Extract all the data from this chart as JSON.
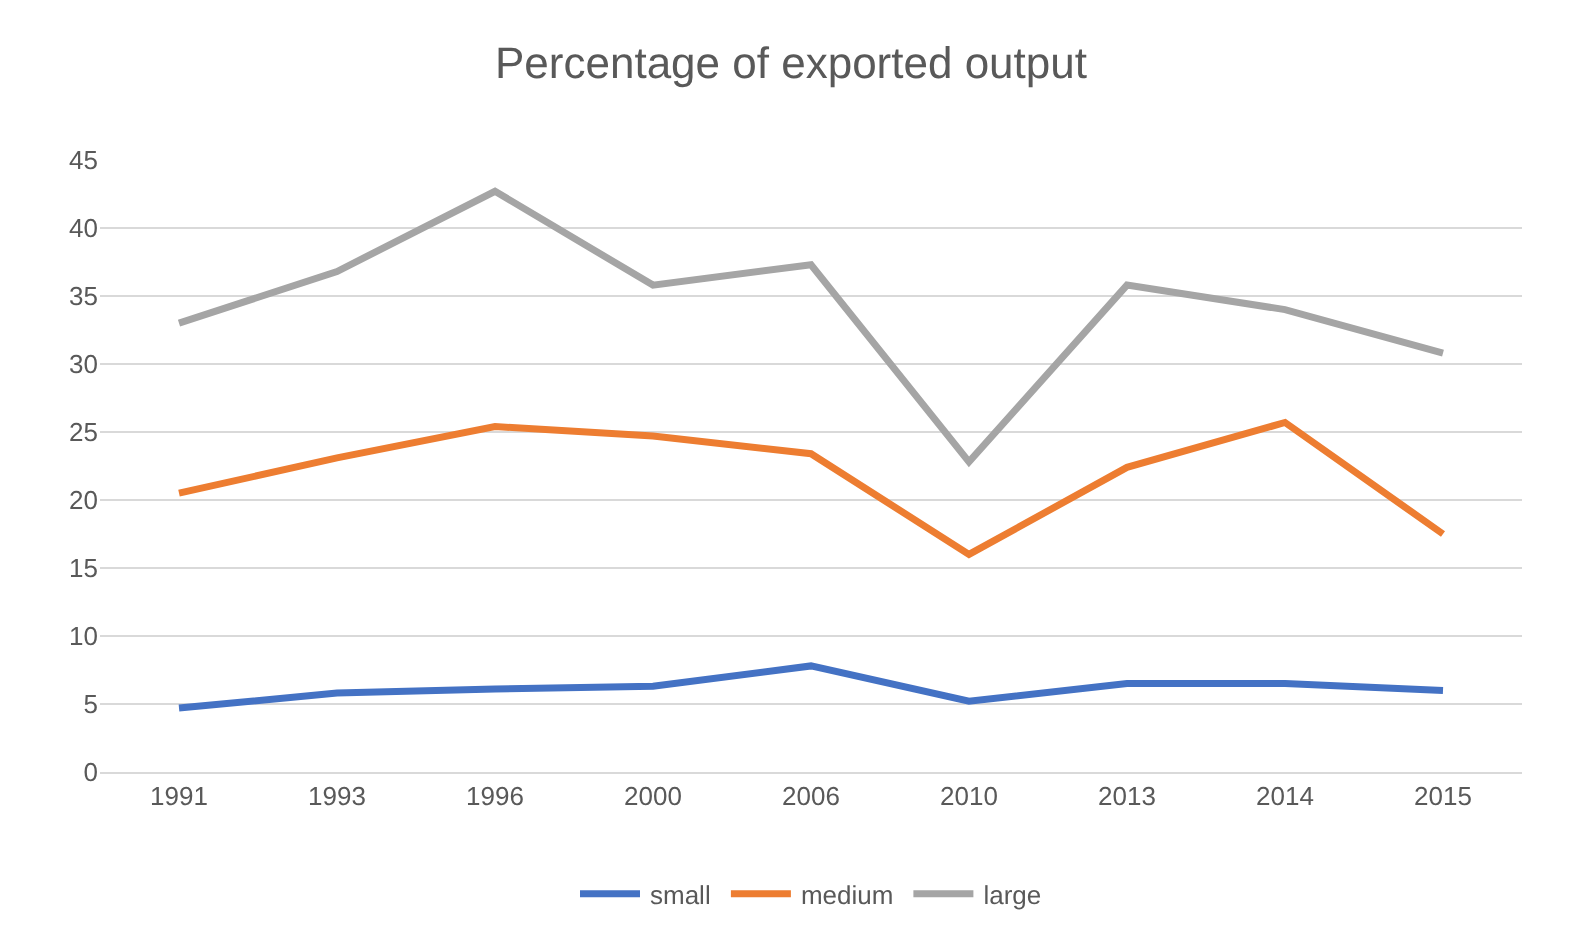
{
  "chart_data": {
    "type": "line",
    "title": "Percentage of exported output",
    "categories": [
      "1991",
      "1993",
      "1996",
      "2000",
      "2006",
      "2010",
      "2013",
      "2014",
      "2015"
    ],
    "series": [
      {
        "name": "small",
        "color": "#4472c4",
        "values": [
          4.7,
          5.8,
          6.1,
          6.3,
          7.8,
          5.2,
          6.5,
          6.5,
          6.0
        ]
      },
      {
        "name": "medium",
        "color": "#ed7d31",
        "values": [
          20.5,
          23.1,
          25.4,
          24.7,
          23.4,
          16.0,
          22.4,
          25.7,
          17.5
        ]
      },
      {
        "name": "large",
        "color": "#a5a5a5",
        "values": [
          33.0,
          36.8,
          42.7,
          35.8,
          37.3,
          22.8,
          35.8,
          34.0,
          30.8
        ]
      }
    ],
    "ylim": [
      0,
      45
    ],
    "yticks": [
      0,
      5,
      10,
      15,
      20,
      25,
      30,
      35,
      40,
      45
    ],
    "grid": "y",
    "legend": "bottom",
    "marker": "none",
    "line_style": "solid"
  }
}
